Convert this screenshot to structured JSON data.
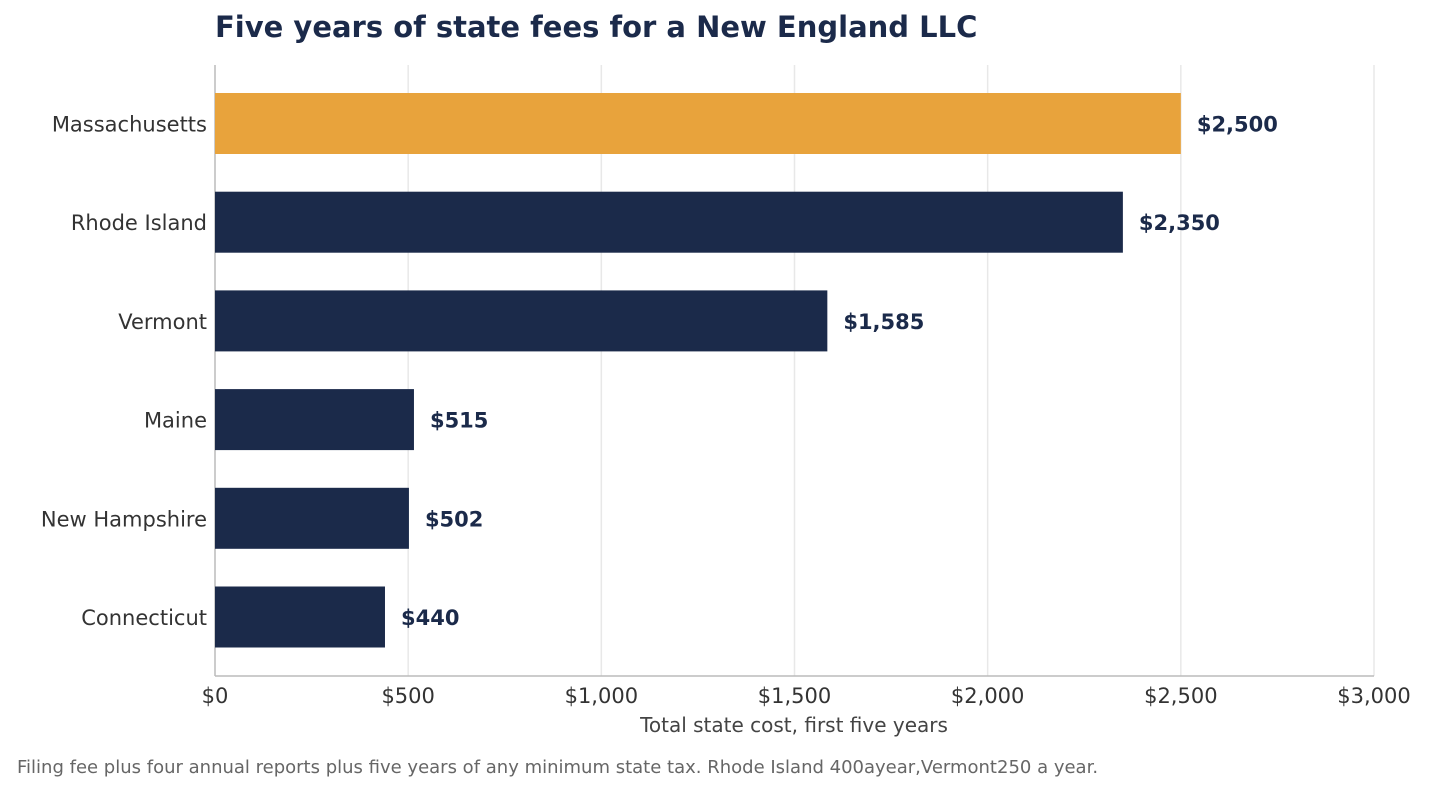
{
  "chart_data": {
    "type": "bar",
    "orientation": "horizontal",
    "title": "Five years of state fees for a New England LLC",
    "xlabel": "Total state cost, first five years",
    "ylabel": "",
    "xlim": [
      0,
      3000
    ],
    "x_ticks": [
      0,
      500,
      1000,
      1500,
      2000,
      2500,
      3000
    ],
    "x_tick_labels": [
      "$0",
      "$500",
      "$1,000",
      "$1,500",
      "$2,000",
      "$2,500",
      "$3,000"
    ],
    "categories": [
      "Massachusetts",
      "Rhode Island",
      "Vermont",
      "Maine",
      "New Hampshire",
      "Connecticut"
    ],
    "values": [
      2500,
      2350,
      1585,
      515,
      502,
      440
    ],
    "value_labels": [
      "$2,500",
      "$2,350",
      "$1,585",
      "$515",
      "$502",
      "$440"
    ],
    "highlight_category": "Massachusetts",
    "grid": "vertical",
    "colors": {
      "default": "#1b2a4a",
      "highlight": "#e8a33c",
      "grid": "#e8e8e8",
      "axis": "#bbbbbb"
    },
    "footnote": "Filing fee plus four annual reports plus five years of any minimum state tax. Rhode Island 400ayear,Vermont250 a year."
  }
}
